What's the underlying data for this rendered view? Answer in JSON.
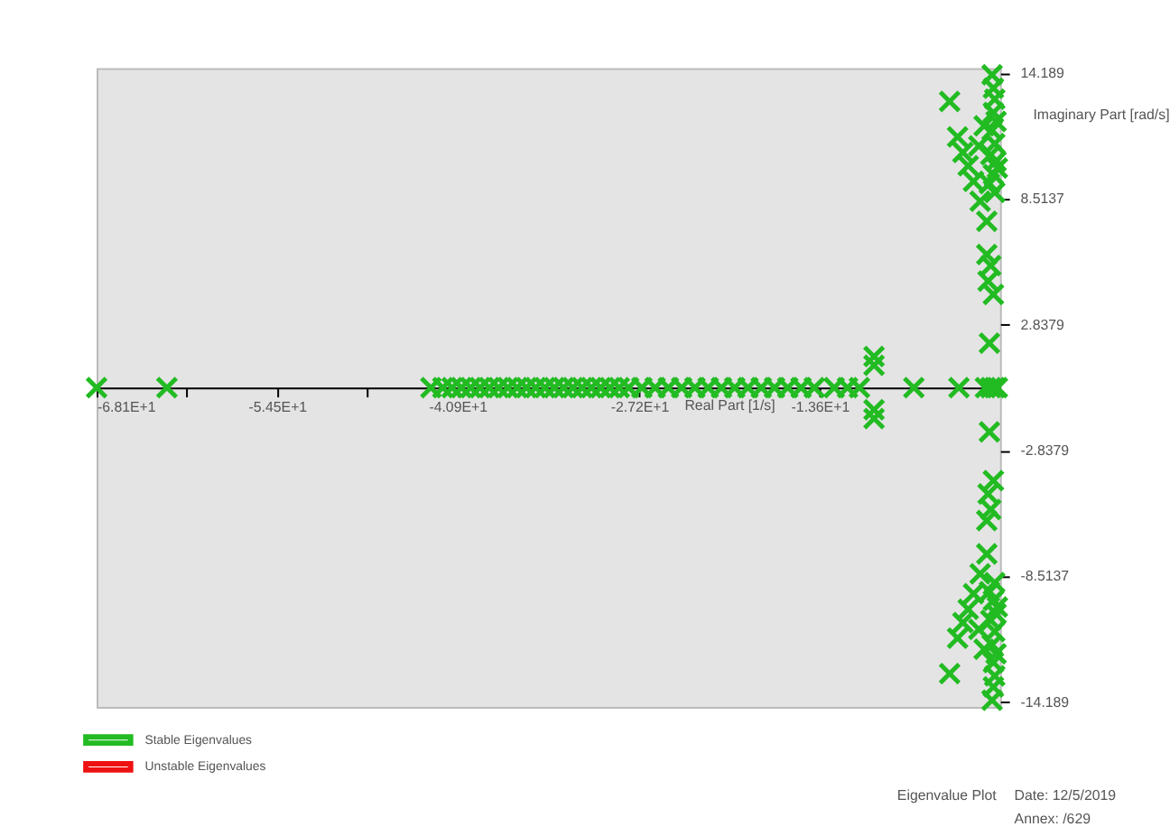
{
  "chart_data": {
    "type": "scatter",
    "xlabel": "Real Part [1/s]",
    "ylabel": "Imaginary Part [rad/s]",
    "xlim": [
      -68.1,
      0
    ],
    "ylim": [
      -14.4,
      14.4
    ],
    "xticks": [
      {
        "value": -68.1,
        "label": "-6.81E+1"
      },
      {
        "value": -61.3,
        "label": null
      },
      {
        "value": -54.5,
        "label": "-5.45E+1"
      },
      {
        "value": -47.7,
        "label": null
      },
      {
        "value": -40.9,
        "label": "-4.09E+1"
      },
      {
        "value": -27.2,
        "label": "-2.72E+1"
      },
      {
        "value": -13.6,
        "label": "-1.36E+1"
      }
    ],
    "yticks": [
      {
        "value": 14.189,
        "label": "14.189"
      },
      {
        "value": 8.5137,
        "label": "8.5137"
      },
      {
        "value": 2.8379,
        "label": "2.8379"
      },
      {
        "value": -2.8379,
        "label": "-2.8379"
      },
      {
        "value": -8.5137,
        "label": "-8.5137"
      },
      {
        "value": -14.189,
        "label": "-14.189"
      }
    ],
    "marker": "cross",
    "grid": false,
    "legend": "bottom left",
    "series": [
      {
        "name": "Stable Eigenvalues",
        "color": "#22bb22",
        "x": [
          -68.1,
          -62.8,
          -42.9,
          -42.0,
          -41.3,
          -40.6,
          -39.9,
          -39.2,
          -38.5,
          -37.8,
          -37.1,
          -36.4,
          -35.7,
          -35.0,
          -34.3,
          -33.6,
          -32.9,
          -32.2,
          -31.5,
          -30.8,
          -30.1,
          -29.4,
          -28.7,
          -28.0,
          -27.0,
          -26.0,
          -25.0,
          -24.0,
          -23.0,
          -22.0,
          -21.0,
          -20.0,
          -19.0,
          -18.0,
          -17.0,
          -16.0,
          -15.0,
          -14.0,
          -12.5,
          -11.5,
          -10.6,
          -9.5,
          -9.5,
          -9.5,
          -9.5,
          -6.5,
          -3.1,
          -1.1,
          -0.7,
          -0.4,
          -0.2,
          -3.8,
          -3.2,
          -2.8,
          -2.4,
          -2.0,
          -1.5,
          -1.0,
          -0.6,
          -0.5,
          -0.4,
          -0.5,
          -0.3,
          -0.6,
          -0.4,
          -0.7,
          -0.3,
          -0.5,
          -0.8,
          -0.4,
          -1.0,
          -0.7,
          -0.9,
          -0.5,
          -0.8,
          -0.2,
          -1.2,
          -1.6,
          -3.8,
          -3.2,
          -2.8,
          -2.4,
          -2.0,
          -1.5,
          -1.0,
          -0.6,
          -0.5,
          -0.4,
          -0.5,
          -0.3,
          -0.6,
          -0.4,
          -0.7,
          -0.3,
          -0.5,
          -0.8,
          -0.4,
          -1.0,
          -0.7,
          -0.9,
          -0.5,
          -0.8,
          -0.2,
          -1.2,
          -1.6
        ],
        "values": [
          0,
          0,
          0,
          0,
          0,
          0,
          0,
          0,
          0,
          0,
          0,
          0,
          0,
          0,
          0,
          0,
          0,
          0,
          0,
          0,
          0,
          0,
          0,
          0,
          0,
          0,
          0,
          0,
          0,
          0,
          0,
          0,
          0,
          0,
          0,
          0,
          0,
          0,
          0,
          0,
          0,
          1.4,
          1.0,
          -1.0,
          -1.4,
          0,
          0,
          0,
          0,
          0,
          0,
          12.9,
          11.3,
          10.6,
          10.0,
          9.3,
          8.4,
          7.5,
          14.1,
          13.5,
          13.0,
          12.4,
          12.0,
          11.6,
          11.0,
          10.5,
          10.2,
          9.6,
          9.2,
          8.8,
          6.0,
          5.5,
          4.8,
          4.2,
          2.0,
          9.9,
          11.8,
          10.9,
          -12.9,
          -11.3,
          -10.6,
          -10.0,
          -9.3,
          -8.4,
          -7.5,
          -14.1,
          -13.5,
          -13.0,
          -12.4,
          -12.0,
          -11.6,
          -11.0,
          -10.5,
          -10.2,
          -9.6,
          -9.2,
          -8.8,
          -6.0,
          -5.5,
          -4.8,
          -4.2,
          -2.0,
          -9.9,
          -11.8,
          -10.9
        ]
      },
      {
        "name": "Unstable Eigenvalues",
        "color": "#ee1111"
      }
    ],
    "annotations": [
      "Eigenvalue Plot",
      "Date: 12/5/2019",
      "Annex: /629"
    ]
  }
}
